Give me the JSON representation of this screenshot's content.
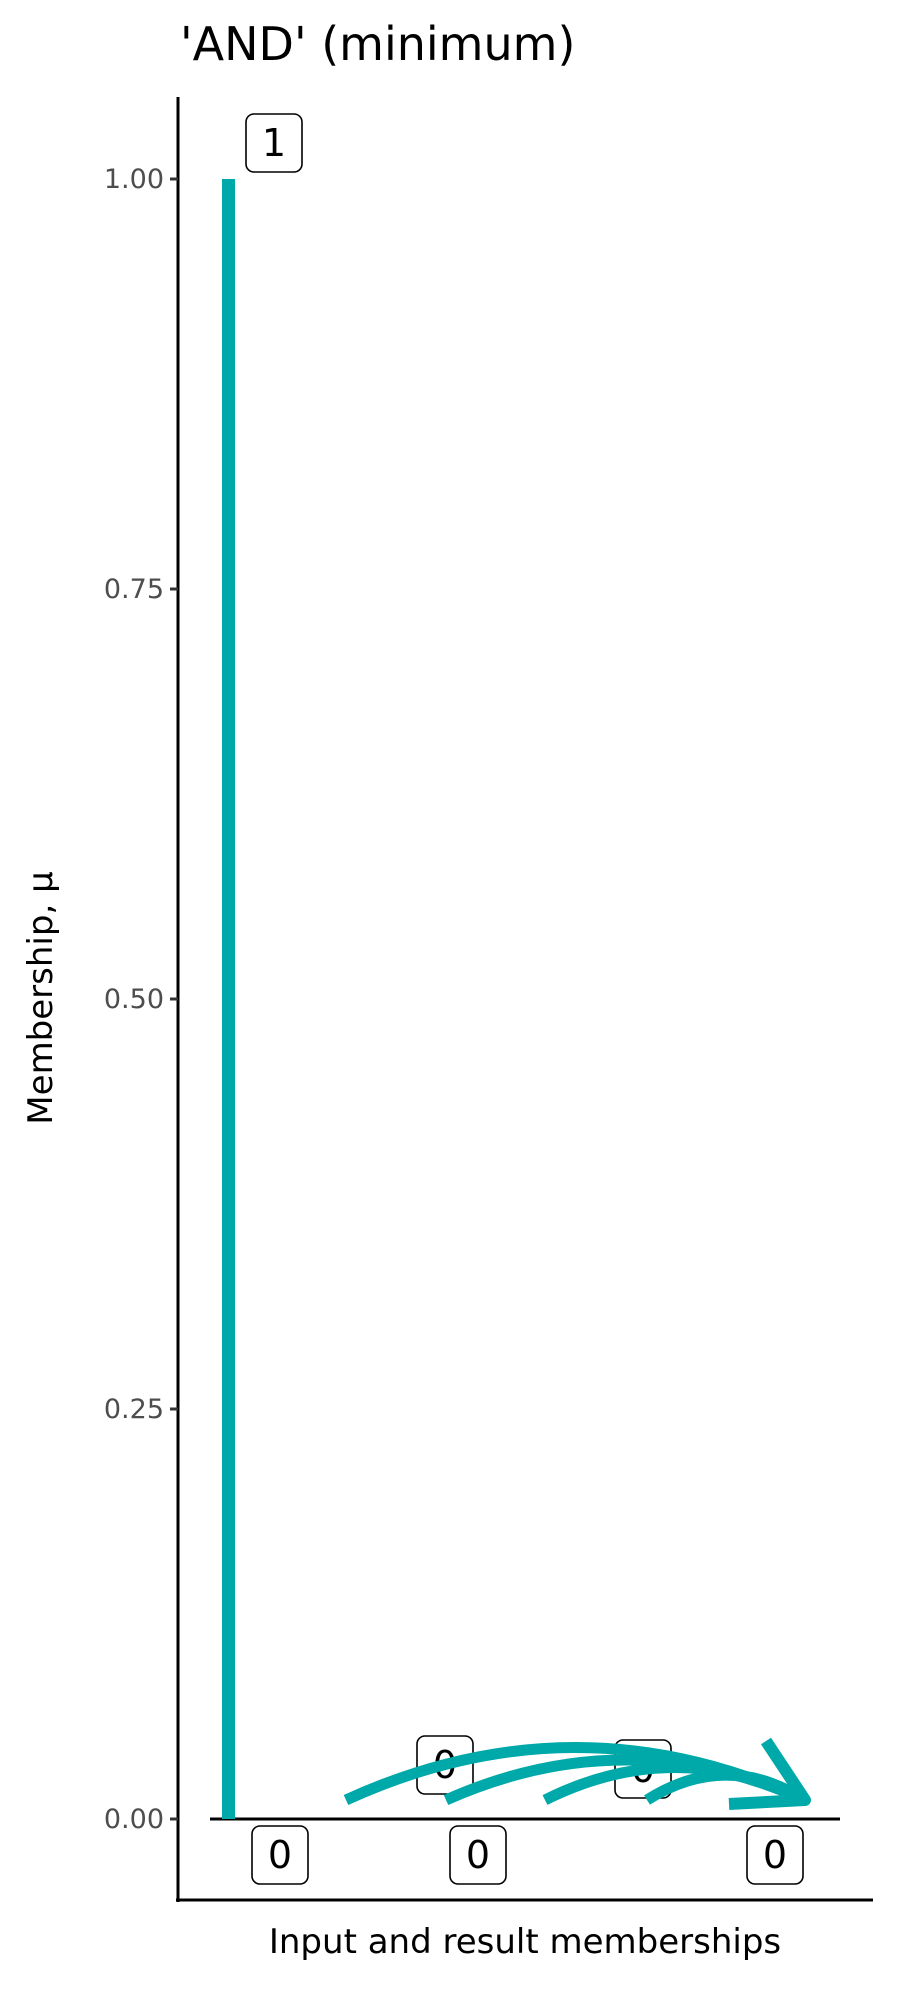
{
  "chart_data": {
    "type": "bar",
    "title": "'AND' (minimum)",
    "xlabel": "Input and result memberships",
    "ylabel": "Membership, μ",
    "ylim": [
      -0.05,
      1.05
    ],
    "yticks": [
      {
        "value": 0.0,
        "label": "0.00"
      },
      {
        "value": 0.25,
        "label": "0.25"
      },
      {
        "value": 0.5,
        "label": "0.50"
      },
      {
        "value": 0.75,
        "label": "0.75"
      },
      {
        "value": 1.0,
        "label": "1.00"
      }
    ],
    "bars": [
      {
        "value": 1,
        "label": "1"
      }
    ],
    "value_labels": [
      {
        "text": "1",
        "value": 1
      },
      {
        "text": "0",
        "value": 0
      },
      {
        "text": "0",
        "value": 0
      },
      {
        "text": "0",
        "value": 0
      },
      {
        "text": "0",
        "value": 0
      },
      {
        "text": "0",
        "value": 0
      }
    ],
    "arrows": 4,
    "color": "#00A9A9",
    "grid": false
  }
}
